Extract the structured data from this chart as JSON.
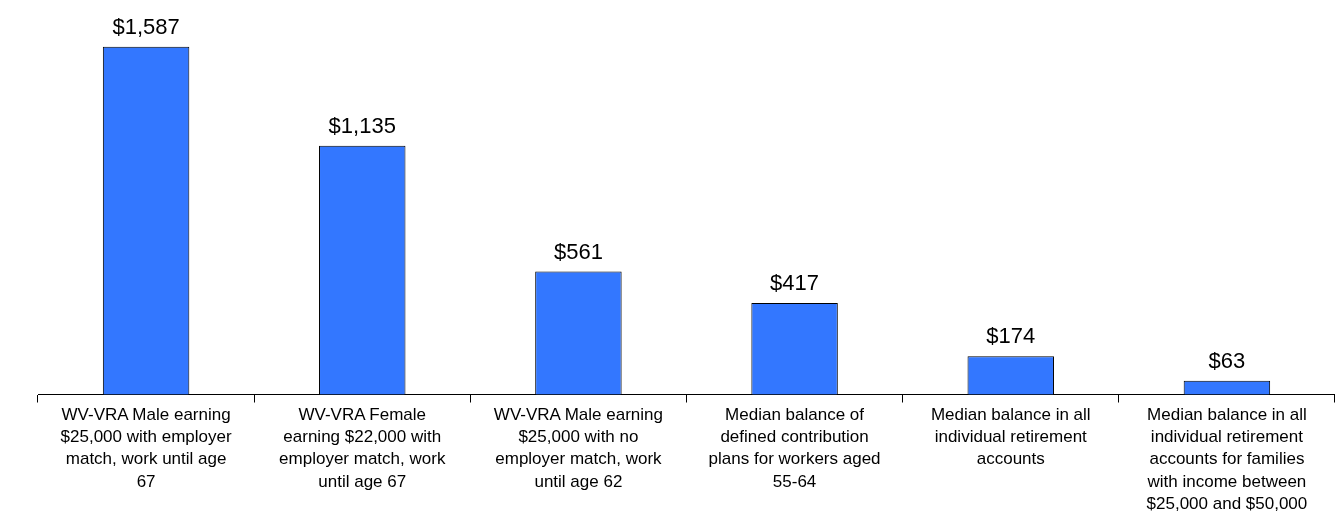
{
  "chart_data": {
    "type": "bar",
    "categories": [
      "WV-VRA Male earning $25,000 with employer match, work until age 67",
      "WV-VRA Female earning $22,000 with employer match, work until age 67",
      "WV-VRA Male earning $25,000 with no employer match, work until age 62",
      "Median balance of defined contribution plans for workers aged 55-64",
      "Median balance in all individual retirement accounts",
      "Median balance in all individual retirement accounts for families with income between $25,000 and $50,000"
    ],
    "values": [
      1587,
      1135,
      561,
      417,
      174,
      63
    ],
    "value_labels": [
      "$1,587",
      "$1,135",
      "$561",
      "$417",
      "$174",
      "$63"
    ],
    "color": "#3377ff",
    "grid": false,
    "legend": false,
    "tick_labels": "x"
  }
}
